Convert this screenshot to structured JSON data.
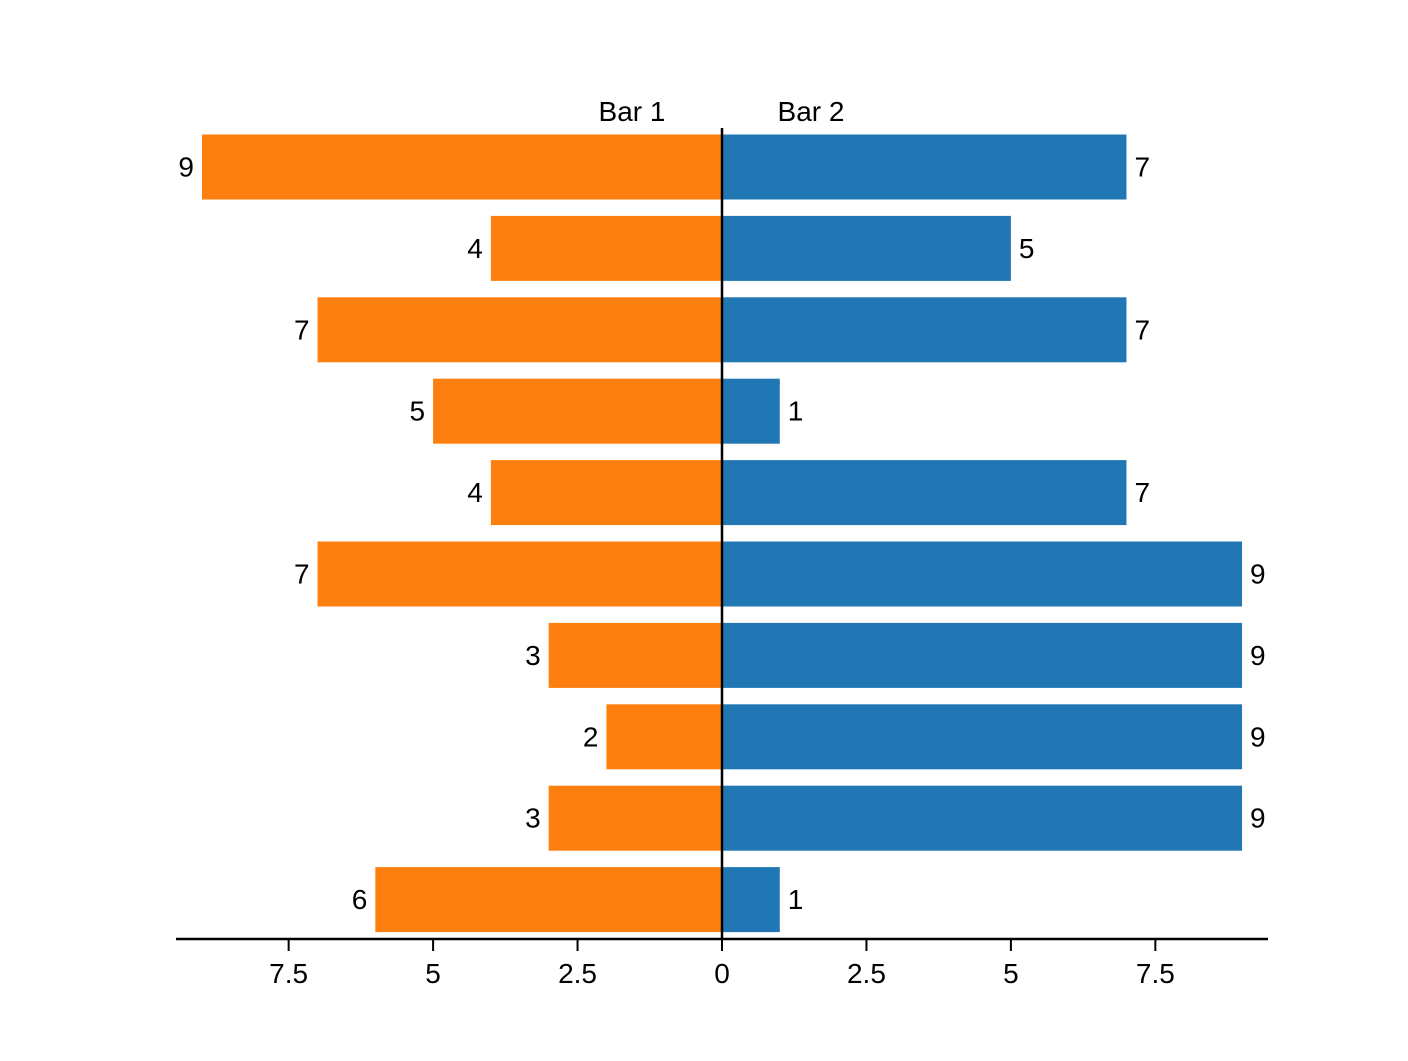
{
  "chart_data": {
    "type": "bar",
    "orientation": "horizontal-diverging",
    "title": "",
    "xlabel": "",
    "ylabel": "",
    "xlim": [
      -9.45,
      9.45
    ],
    "x_ticks": [
      -7.5,
      -5,
      -2.5,
      0,
      2.5,
      5,
      7.5
    ],
    "x_tick_labels": [
      "7.5",
      "5",
      "2.5",
      "0",
      "2.5",
      "5",
      "7.5"
    ],
    "grid": false,
    "legend": "top-center",
    "series": [
      {
        "name": "Bar 1",
        "side": "left",
        "color": "#fd7f0f",
        "values": [
          9,
          4,
          7,
          5,
          4,
          7,
          3,
          2,
          3,
          6
        ]
      },
      {
        "name": "Bar 2",
        "side": "right",
        "color": "#2077b4",
        "values": [
          7,
          5,
          7,
          1,
          7,
          9,
          9,
          9,
          9,
          1
        ]
      }
    ]
  }
}
